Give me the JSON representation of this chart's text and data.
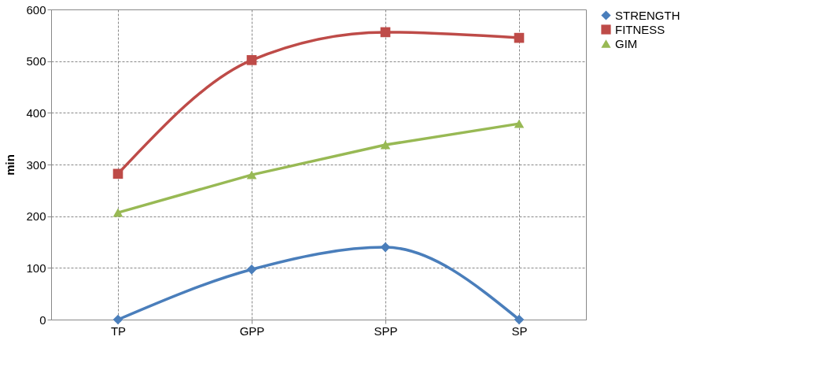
{
  "chart_data": {
    "type": "line",
    "ylabel": "min",
    "categories": [
      "TP",
      "GPP",
      "SPP",
      "SP"
    ],
    "series": [
      {
        "name": "STRENGTH",
        "color": "#4a7ebb",
        "marker": "diamond",
        "values": [
          0,
          97,
          140,
          0
        ]
      },
      {
        "name": "FITNESS",
        "color": "#be4b48",
        "marker": "square",
        "values": [
          282,
          502,
          556,
          545
        ]
      },
      {
        "name": "GIM",
        "color": "#98b954",
        "marker": "triangle",
        "values": [
          207,
          280,
          338,
          379
        ]
      }
    ],
    "ylim": [
      0,
      600
    ],
    "yticks": [
      0,
      100,
      200,
      300,
      400,
      500,
      600
    ],
    "grid": true,
    "legend": "right",
    "line_style": "solid"
  }
}
